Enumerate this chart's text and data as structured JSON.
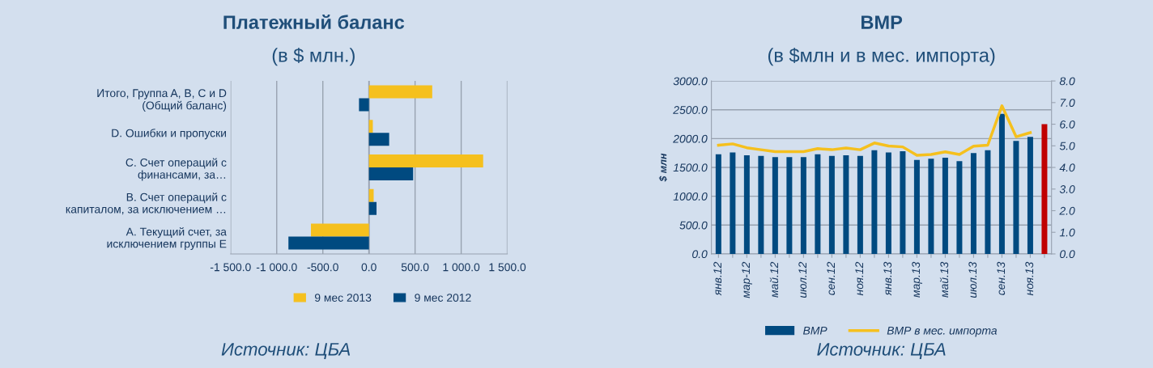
{
  "chart_data": [
    {
      "type": "bar",
      "orientation": "horizontal",
      "title": "Платежный баланс",
      "subtitle": "(в $ млн.)",
      "categories": [
        "Итого, Группа A, B, C и D\n(Общий баланс)",
        "D. Ошибки и пропуски",
        "C. Счет операций с\nфинансами, за…",
        "B. Счет операций с\nкапиталом, за исключением …",
        "A. Текущий счет, за\nисключением группы E"
      ],
      "series": [
        {
          "name": "9 мес 2013",
          "color": "#f5c01e",
          "values": [
            686,
            42,
            1238,
            51,
            -629
          ]
        },
        {
          "name": "9 мес 2012",
          "color": "#004a80",
          "values": [
            -108,
            219,
            479,
            82,
            -873
          ]
        }
      ],
      "xlim": [
        -1500,
        1500
      ],
      "xticks": [
        {
          "value": -1500,
          "label": "-1 500.0"
        },
        {
          "value": -1000,
          "label": "-1 000.0"
        },
        {
          "value": -500,
          "label": "-500.0"
        },
        {
          "value": 0,
          "label": "0.0"
        },
        {
          "value": 500,
          "label": "500.0"
        },
        {
          "value": 1000,
          "label": "1 000.0"
        },
        {
          "value": 1500,
          "label": "1 500.0"
        }
      ],
      "grid": "x",
      "legend": "bottom",
      "annotations": [
        "Источник: ЦБА"
      ]
    },
    {
      "type": "bar",
      "title": "ВМР",
      "subtitle": "(в $млн и в мес. импорта)",
      "ylabel": "$ млн",
      "categories": [
        "янв.12",
        null,
        "мар-12",
        null,
        "май.12",
        null,
        "июл.12",
        null,
        "сен.12",
        null,
        "ноя.12",
        null,
        "янв.13",
        null,
        "мар.13",
        null,
        "май.13",
        null,
        "июл.13",
        null,
        "сен.13",
        null,
        "ноя.13",
        null
      ],
      "series": [
        {
          "name": "ВМР",
          "color": "#004a80",
          "colors": [
            "#004a80",
            "#004a80",
            "#004a80",
            "#004a80",
            "#004a80",
            "#004a80",
            "#004a80",
            "#004a80",
            "#004a80",
            "#004a80",
            "#004a80",
            "#004a80",
            "#004a80",
            "#004a80",
            "#004a80",
            "#004a80",
            "#004a80",
            "#004a80",
            "#004a80",
            "#004a80",
            "#004a80",
            "#004a80",
            "#004a80",
            "#c00000"
          ],
          "values": [
            1730,
            1760,
            1710,
            1700,
            1680,
            1680,
            1680,
            1730,
            1700,
            1710,
            1700,
            1800,
            1760,
            1780,
            1630,
            1650,
            1670,
            1610,
            1750,
            1800,
            2430,
            1960,
            2030,
            2250
          ]
        },
        {
          "name": "ВМР в мес. импорта",
          "type": "line",
          "axis": "y2",
          "color": "#f5c01e",
          "values": [
            5.03,
            5.09,
            4.91,
            4.82,
            4.73,
            4.73,
            4.73,
            4.87,
            4.82,
            4.9,
            4.82,
            5.13,
            4.99,
            4.95,
            4.56,
            4.6,
            4.72,
            4.6,
            4.98,
            5.03,
            6.85,
            5.42,
            5.61,
            null
          ]
        }
      ],
      "ylim": [
        0,
        3000
      ],
      "yticks": [
        {
          "value": 0,
          "label": "0.0"
        },
        {
          "value": 500,
          "label": "500.0"
        },
        {
          "value": 1000,
          "label": "1000.0"
        },
        {
          "value": 1500,
          "label": "1500.0"
        },
        {
          "value": 2000,
          "label": "2000.0"
        },
        {
          "value": 2500,
          "label": "2500.0"
        },
        {
          "value": 3000,
          "label": "3000.0"
        }
      ],
      "y2lim": [
        0,
        8
      ],
      "y2ticks": [
        {
          "value": 0,
          "label": "0.0"
        },
        {
          "value": 1,
          "label": "1.0"
        },
        {
          "value": 2,
          "label": "2.0"
        },
        {
          "value": 3,
          "label": "3.0"
        },
        {
          "value": 4,
          "label": "4.0"
        },
        {
          "value": 5,
          "label": "5.0"
        },
        {
          "value": 6,
          "label": "6.0"
        },
        {
          "value": 7,
          "label": "7.0"
        },
        {
          "value": 8,
          "label": "8.0"
        }
      ],
      "grid": "y",
      "legend": "bottom",
      "annotations": [
        "Источник: ЦБА"
      ]
    }
  ]
}
